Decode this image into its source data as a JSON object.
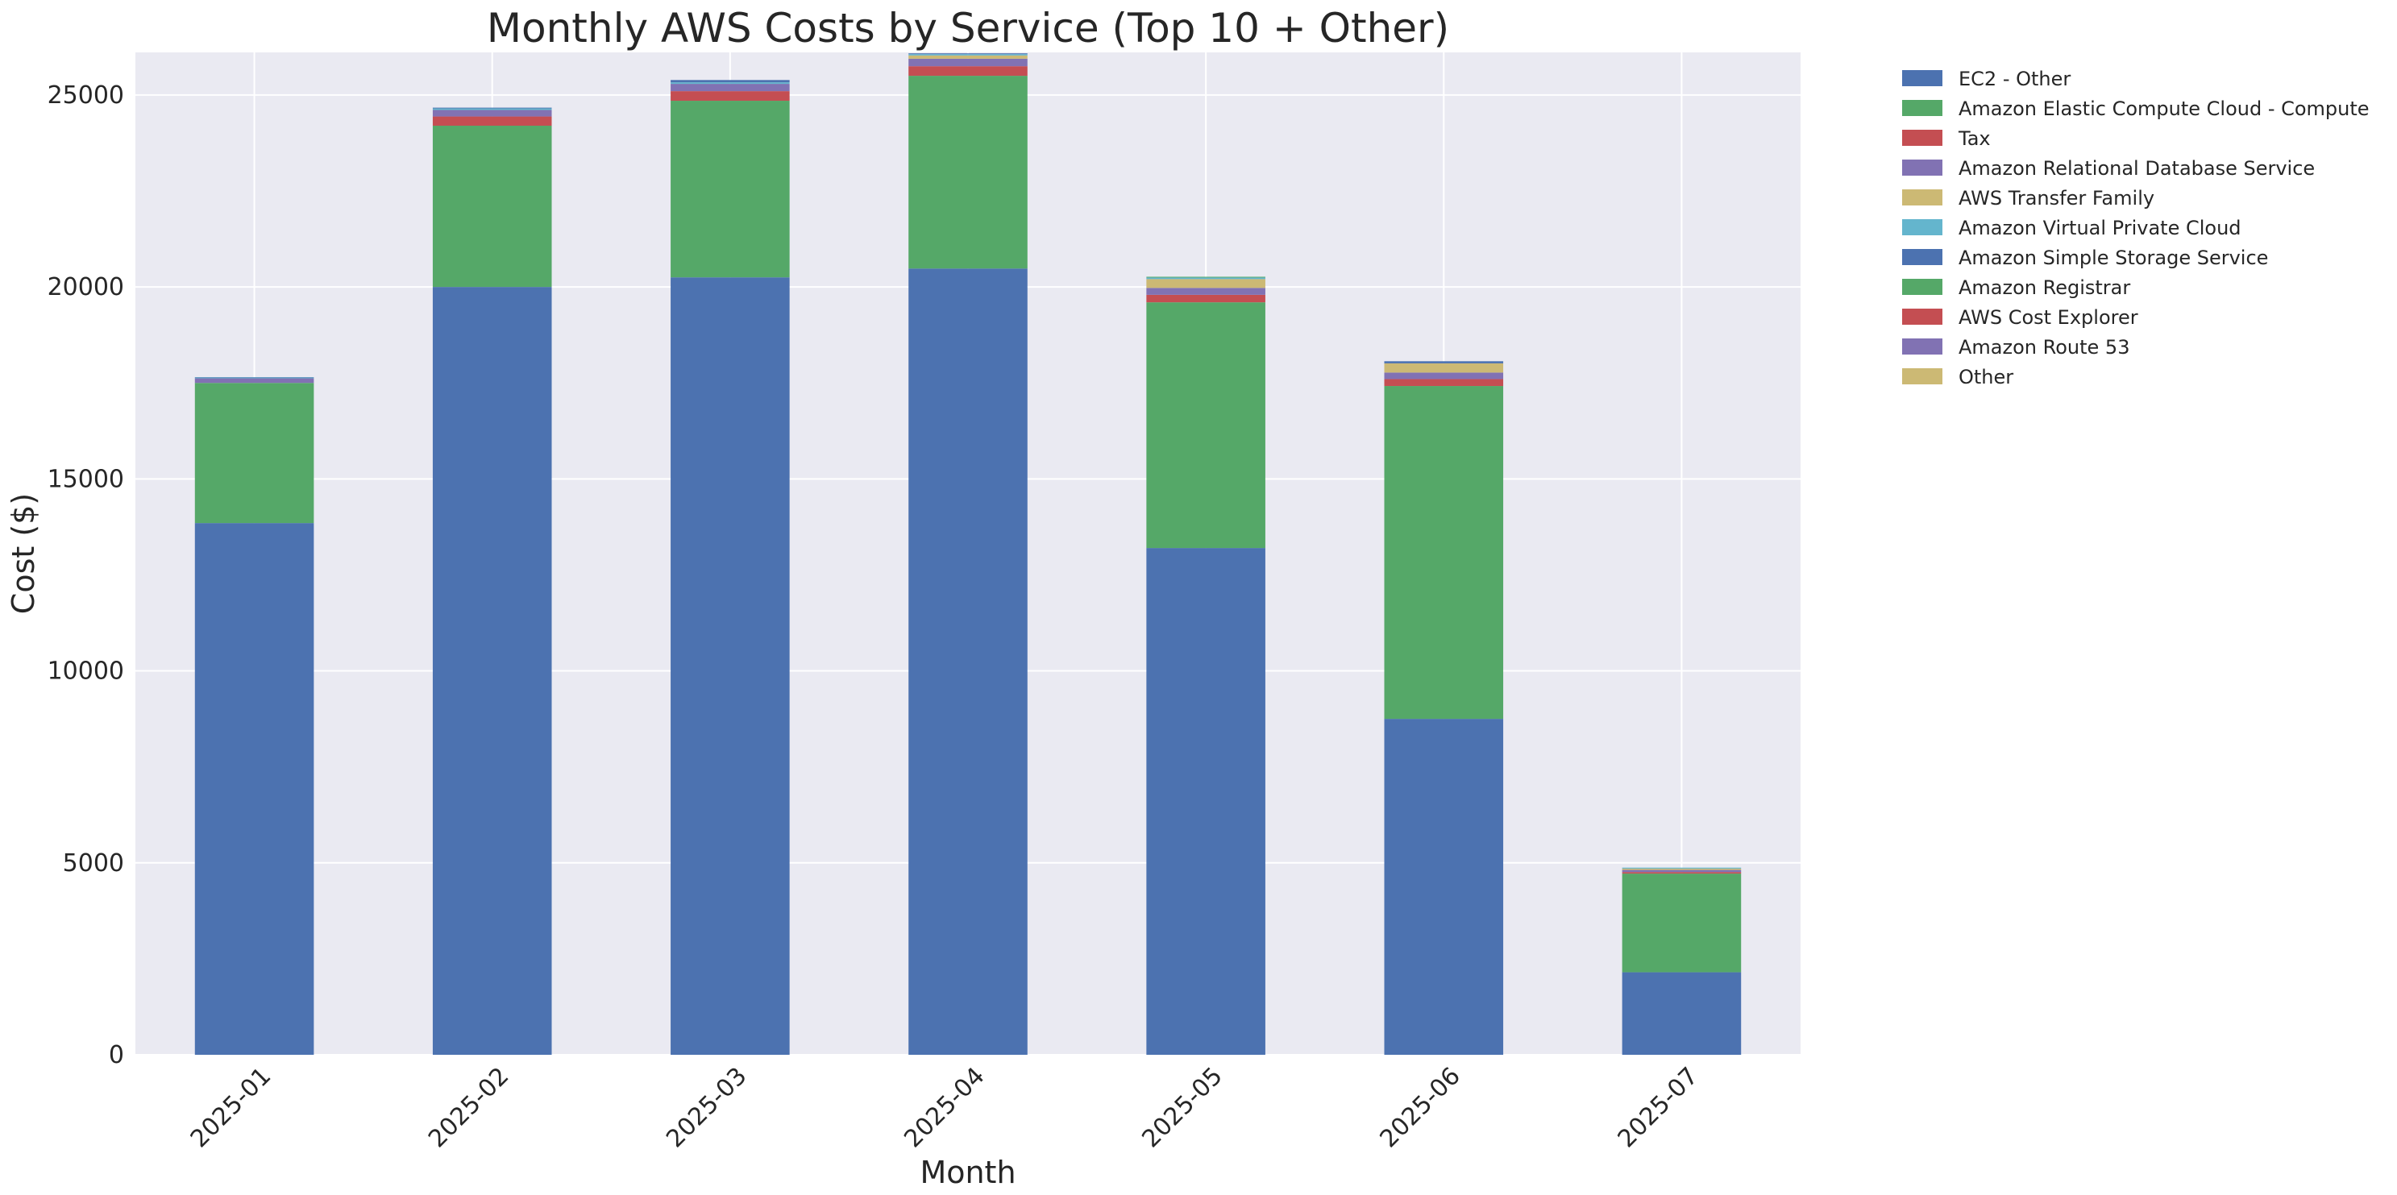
{
  "chart_data": {
    "type": "bar",
    "stacked": true,
    "title": "Monthly AWS Costs by Service (Top 10 + Other)",
    "xlabel": "Month",
    "ylabel": "Cost ($)",
    "categories": [
      "2025-01",
      "2025-02",
      "2025-03",
      "2025-04",
      "2025-05",
      "2025-06",
      "2025-07"
    ],
    "ylim": [
      0,
      26110
    ],
    "yticks": [
      0,
      5000,
      10000,
      15000,
      20000,
      25000
    ],
    "grid": true,
    "legend_position": "outside-top-right",
    "series": [
      {
        "name": "EC2 - Other",
        "color": "#4c72b0",
        "values": [
          13850,
          20000,
          20250,
          20480,
          13200,
          8750,
          2150
        ]
      },
      {
        "name": "Amazon Elastic Compute Cloud - Compute",
        "color": "#55a868",
        "values": [
          3650,
          4200,
          4600,
          5020,
          6400,
          8670,
          2570
        ]
      },
      {
        "name": "Tax",
        "color": "#c44e52",
        "values": [
          0,
          240,
          250,
          250,
          195,
          180,
          40
        ]
      },
      {
        "name": "Amazon Relational Database Service",
        "color": "#8172b3",
        "values": [
          120,
          170,
          190,
          195,
          180,
          170,
          55
        ]
      },
      {
        "name": "AWS Transfer Family",
        "color": "#ccb974",
        "values": [
          0,
          0,
          0,
          85,
          230,
          240,
          35
        ]
      },
      {
        "name": "Amazon Virtual Private Cloud",
        "color": "#64b5cd",
        "values": [
          20,
          40,
          40,
          35,
          40,
          0,
          25
        ]
      },
      {
        "name": "Amazon Simple Storage Service",
        "color": "#4c72b0",
        "values": [
          10,
          20,
          60,
          20,
          0,
          55,
          0
        ]
      },
      {
        "name": "Amazon Registrar",
        "color": "#55a868",
        "values": [
          0,
          0,
          0,
          0,
          20,
          0,
          0
        ]
      },
      {
        "name": "AWS Cost Explorer",
        "color": "#c44e52",
        "values": [
          0,
          0,
          0,
          0,
          0,
          0,
          0
        ]
      },
      {
        "name": "Amazon Route 53",
        "color": "#8172b3",
        "values": [
          0,
          0,
          0,
          0,
          0,
          0,
          0
        ]
      },
      {
        "name": "Other",
        "color": "#ccb974",
        "values": [
          0,
          0,
          0,
          0,
          0,
          0,
          0
        ]
      }
    ]
  }
}
